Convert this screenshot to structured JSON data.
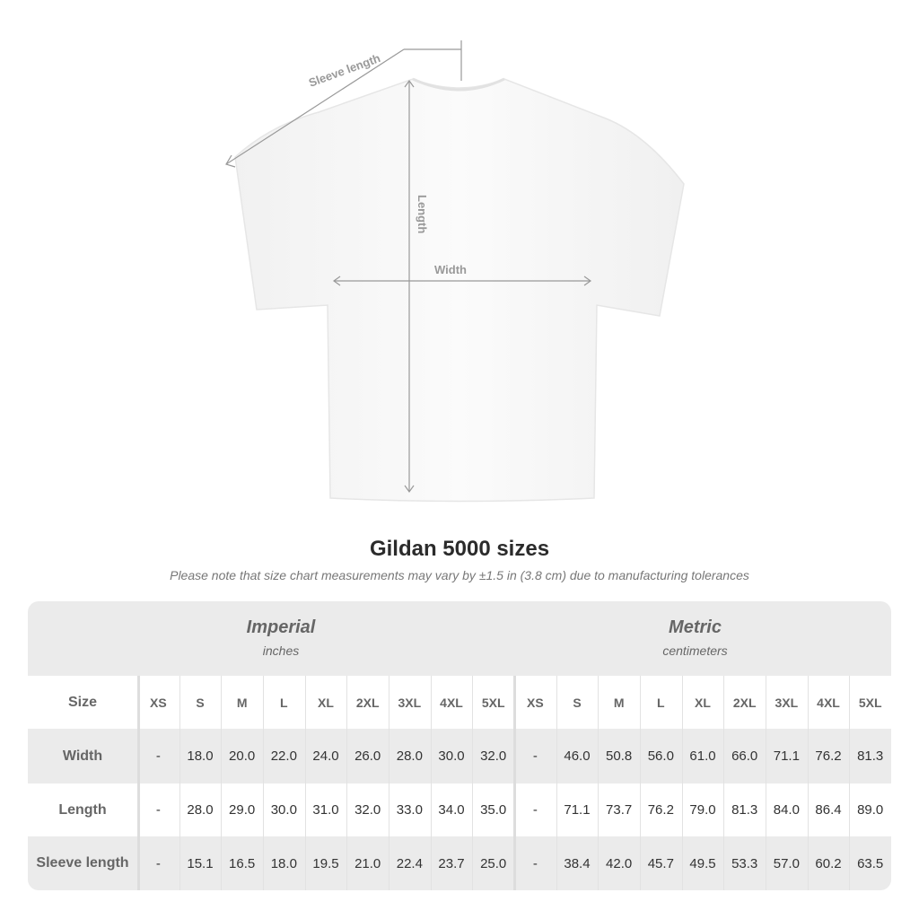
{
  "diagram": {
    "sleeve_label": "Sleeve length",
    "length_label": "Length",
    "width_label": "Width"
  },
  "title": "Gildan 5000 sizes",
  "note": "Please note that size chart measurements may vary by ±1.5 in (3.8 cm) due to manufacturing tolerances",
  "imperial": {
    "heading": "Imperial",
    "unit": "inches"
  },
  "metric": {
    "heading": "Metric",
    "unit": "centimeters"
  },
  "size_label": "Size",
  "sizes": [
    "XS",
    "S",
    "M",
    "L",
    "XL",
    "2XL",
    "3XL",
    "4XL",
    "5XL"
  ],
  "rows": [
    {
      "label": "Width",
      "imperial": [
        "-",
        "18.0",
        "20.0",
        "22.0",
        "24.0",
        "26.0",
        "28.0",
        "30.0",
        "32.0"
      ],
      "metric": [
        "-",
        "46.0",
        "50.8",
        "56.0",
        "61.0",
        "66.0",
        "71.1",
        "76.2",
        "81.3"
      ]
    },
    {
      "label": "Length",
      "imperial": [
        "-",
        "28.0",
        "29.0",
        "30.0",
        "31.0",
        "32.0",
        "33.0",
        "34.0",
        "35.0"
      ],
      "metric": [
        "-",
        "71.1",
        "73.7",
        "76.2",
        "79.0",
        "81.3",
        "84.0",
        "86.4",
        "89.0"
      ]
    },
    {
      "label": "Sleeve length",
      "imperial": [
        "-",
        "15.1",
        "16.5",
        "18.0",
        "19.5",
        "21.0",
        "22.4",
        "23.7",
        "25.0"
      ],
      "metric": [
        "-",
        "38.4",
        "42.0",
        "45.7",
        "49.5",
        "53.3",
        "57.0",
        "60.2",
        "63.5"
      ]
    }
  ],
  "colors": {
    "band": "#ebebeb",
    "text": "#333333",
    "label": "#666666",
    "measure": "#999999"
  }
}
